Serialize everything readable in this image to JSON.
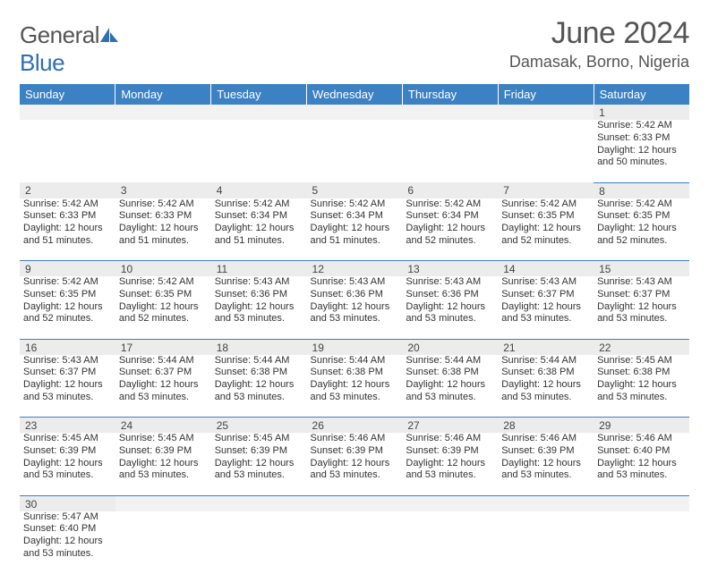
{
  "brand": {
    "general": "General",
    "blue": "Blue"
  },
  "title": {
    "month_year": "June 2024",
    "location": "Damasak, Borno, Nigeria"
  },
  "colors": {
    "accent": "#3b81c3",
    "header_bg": "#3b81c3",
    "daynum_bg": "#ececec",
    "text": "#333333"
  },
  "weekdays": [
    "Sunday",
    "Monday",
    "Tuesday",
    "Wednesday",
    "Thursday",
    "Friday",
    "Saturday"
  ],
  "weeks": [
    [
      null,
      null,
      null,
      null,
      null,
      null,
      {
        "d": "1",
        "rise": "Sunrise: 5:42 AM",
        "set": "Sunset: 6:33 PM",
        "dl": "Daylight: 12 hours and 50 minutes."
      }
    ],
    [
      {
        "d": "2",
        "rise": "Sunrise: 5:42 AM",
        "set": "Sunset: 6:33 PM",
        "dl": "Daylight: 12 hours and 51 minutes."
      },
      {
        "d": "3",
        "rise": "Sunrise: 5:42 AM",
        "set": "Sunset: 6:33 PM",
        "dl": "Daylight: 12 hours and 51 minutes."
      },
      {
        "d": "4",
        "rise": "Sunrise: 5:42 AM",
        "set": "Sunset: 6:34 PM",
        "dl": "Daylight: 12 hours and 51 minutes."
      },
      {
        "d": "5",
        "rise": "Sunrise: 5:42 AM",
        "set": "Sunset: 6:34 PM",
        "dl": "Daylight: 12 hours and 51 minutes."
      },
      {
        "d": "6",
        "rise": "Sunrise: 5:42 AM",
        "set": "Sunset: 6:34 PM",
        "dl": "Daylight: 12 hours and 52 minutes."
      },
      {
        "d": "7",
        "rise": "Sunrise: 5:42 AM",
        "set": "Sunset: 6:35 PM",
        "dl": "Daylight: 12 hours and 52 minutes."
      },
      {
        "d": "8",
        "rise": "Sunrise: 5:42 AM",
        "set": "Sunset: 6:35 PM",
        "dl": "Daylight: 12 hours and 52 minutes."
      }
    ],
    [
      {
        "d": "9",
        "rise": "Sunrise: 5:42 AM",
        "set": "Sunset: 6:35 PM",
        "dl": "Daylight: 12 hours and 52 minutes."
      },
      {
        "d": "10",
        "rise": "Sunrise: 5:42 AM",
        "set": "Sunset: 6:35 PM",
        "dl": "Daylight: 12 hours and 52 minutes."
      },
      {
        "d": "11",
        "rise": "Sunrise: 5:43 AM",
        "set": "Sunset: 6:36 PM",
        "dl": "Daylight: 12 hours and 53 minutes."
      },
      {
        "d": "12",
        "rise": "Sunrise: 5:43 AM",
        "set": "Sunset: 6:36 PM",
        "dl": "Daylight: 12 hours and 53 minutes."
      },
      {
        "d": "13",
        "rise": "Sunrise: 5:43 AM",
        "set": "Sunset: 6:36 PM",
        "dl": "Daylight: 12 hours and 53 minutes."
      },
      {
        "d": "14",
        "rise": "Sunrise: 5:43 AM",
        "set": "Sunset: 6:37 PM",
        "dl": "Daylight: 12 hours and 53 minutes."
      },
      {
        "d": "15",
        "rise": "Sunrise: 5:43 AM",
        "set": "Sunset: 6:37 PM",
        "dl": "Daylight: 12 hours and 53 minutes."
      }
    ],
    [
      {
        "d": "16",
        "rise": "Sunrise: 5:43 AM",
        "set": "Sunset: 6:37 PM",
        "dl": "Daylight: 12 hours and 53 minutes."
      },
      {
        "d": "17",
        "rise": "Sunrise: 5:44 AM",
        "set": "Sunset: 6:37 PM",
        "dl": "Daylight: 12 hours and 53 minutes."
      },
      {
        "d": "18",
        "rise": "Sunrise: 5:44 AM",
        "set": "Sunset: 6:38 PM",
        "dl": "Daylight: 12 hours and 53 minutes."
      },
      {
        "d": "19",
        "rise": "Sunrise: 5:44 AM",
        "set": "Sunset: 6:38 PM",
        "dl": "Daylight: 12 hours and 53 minutes."
      },
      {
        "d": "20",
        "rise": "Sunrise: 5:44 AM",
        "set": "Sunset: 6:38 PM",
        "dl": "Daylight: 12 hours and 53 minutes."
      },
      {
        "d": "21",
        "rise": "Sunrise: 5:44 AM",
        "set": "Sunset: 6:38 PM",
        "dl": "Daylight: 12 hours and 53 minutes."
      },
      {
        "d": "22",
        "rise": "Sunrise: 5:45 AM",
        "set": "Sunset: 6:38 PM",
        "dl": "Daylight: 12 hours and 53 minutes."
      }
    ],
    [
      {
        "d": "23",
        "rise": "Sunrise: 5:45 AM",
        "set": "Sunset: 6:39 PM",
        "dl": "Daylight: 12 hours and 53 minutes."
      },
      {
        "d": "24",
        "rise": "Sunrise: 5:45 AM",
        "set": "Sunset: 6:39 PM",
        "dl": "Daylight: 12 hours and 53 minutes."
      },
      {
        "d": "25",
        "rise": "Sunrise: 5:45 AM",
        "set": "Sunset: 6:39 PM",
        "dl": "Daylight: 12 hours and 53 minutes."
      },
      {
        "d": "26",
        "rise": "Sunrise: 5:46 AM",
        "set": "Sunset: 6:39 PM",
        "dl": "Daylight: 12 hours and 53 minutes."
      },
      {
        "d": "27",
        "rise": "Sunrise: 5:46 AM",
        "set": "Sunset: 6:39 PM",
        "dl": "Daylight: 12 hours and 53 minutes."
      },
      {
        "d": "28",
        "rise": "Sunrise: 5:46 AM",
        "set": "Sunset: 6:39 PM",
        "dl": "Daylight: 12 hours and 53 minutes."
      },
      {
        "d": "29",
        "rise": "Sunrise: 5:46 AM",
        "set": "Sunset: 6:40 PM",
        "dl": "Daylight: 12 hours and 53 minutes."
      }
    ],
    [
      {
        "d": "30",
        "rise": "Sunrise: 5:47 AM",
        "set": "Sunset: 6:40 PM",
        "dl": "Daylight: 12 hours and 53 minutes."
      },
      null,
      null,
      null,
      null,
      null,
      null
    ]
  ]
}
